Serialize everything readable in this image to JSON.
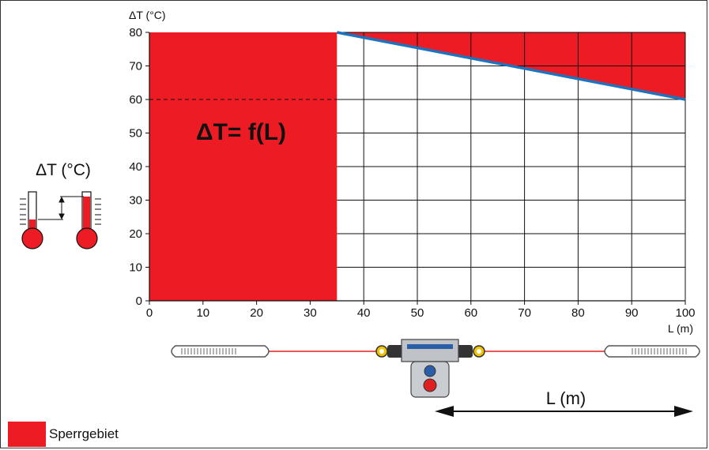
{
  "chart_data": {
    "type": "area",
    "title": "",
    "formula_label": "ΔT= f(L)",
    "ylabel": "ΔT (°C)",
    "xlabel": "L (m)",
    "xlim": [
      0,
      100
    ],
    "ylim": [
      0,
      80
    ],
    "x_ticks": [
      0,
      10,
      20,
      30,
      40,
      50,
      60,
      70,
      80,
      90,
      100
    ],
    "y_ticks": [
      0,
      10,
      20,
      30,
      40,
      50,
      60,
      70,
      80
    ],
    "grid": true,
    "grid_x_range": [
      35,
      100
    ],
    "blocked_region_x": [
      0,
      35
    ],
    "dashed_reference_y": 60,
    "limit_line": {
      "x": [
        35,
        100
      ],
      "y": [
        80,
        60
      ],
      "color": "#1e73be"
    },
    "fill_color": "#ed1c24",
    "legend_placement": "bottom-left"
  },
  "diagram": {
    "side_title": "ΔT (°C)",
    "length_label": "L (m)"
  },
  "legend": {
    "label": "Sperrgebiet",
    "color": "#ed1c24"
  }
}
